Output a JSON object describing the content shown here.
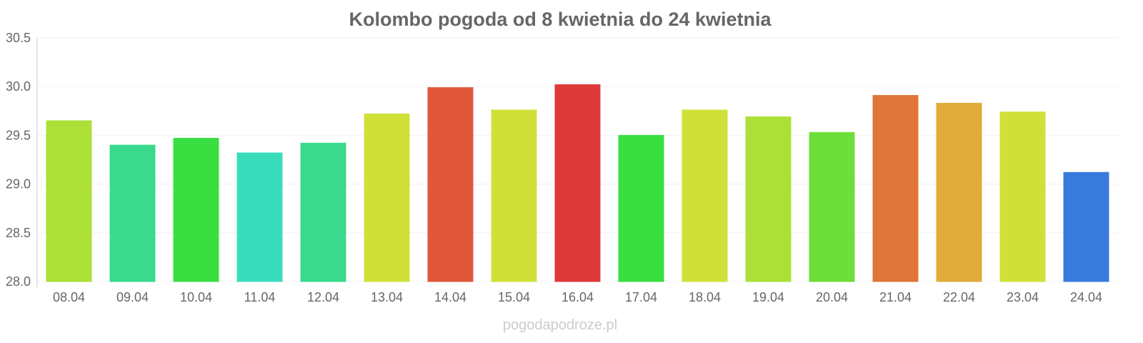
{
  "chart_data": {
    "type": "bar",
    "title": "Kolombo pogoda od 8 kwietnia do 24 kwietnia",
    "xlabel": "",
    "ylabel": "",
    "ylim": [
      28.0,
      30.5
    ],
    "yticks": [
      "28.0",
      "28.5",
      "29.0",
      "29.5",
      "30.0",
      "30.5"
    ],
    "grid": true,
    "categories": [
      "08.04",
      "09.04",
      "10.04",
      "11.04",
      "12.04",
      "13.04",
      "14.04",
      "15.04",
      "16.04",
      "17.04",
      "18.04",
      "19.04",
      "20.04",
      "21.04",
      "22.04",
      "23.04",
      "24.04"
    ],
    "values": [
      29.65,
      29.4,
      29.47,
      29.32,
      29.42,
      29.72,
      29.99,
      29.76,
      30.02,
      29.5,
      29.76,
      29.69,
      29.53,
      29.91,
      29.83,
      29.74,
      29.12
    ],
    "colors": [
      "#a9df33",
      "#33d98a",
      "#33dd3a",
      "#33dcba",
      "#33d98a",
      "#cfdf33",
      "#df5233",
      "#cfdf33",
      "#dc3333",
      "#33dd3a",
      "#cfdf33",
      "#a9df33",
      "#69dd33",
      "#df7233",
      "#dfa833",
      "#cfdf33",
      "#3377dc"
    ]
  },
  "watermark": "pogodapodroze.pl"
}
